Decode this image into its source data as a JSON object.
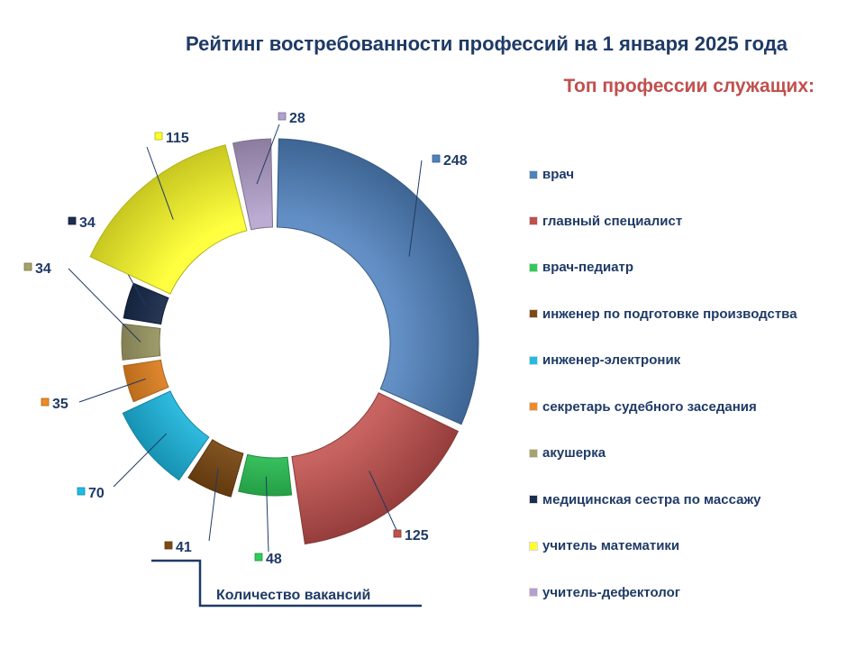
{
  "title": "Рейтинг востребованности профессий на 1 января 2025 года",
  "subtitle": "Топ профессии служащих:",
  "caption": "Количество вакансий",
  "chart_data": {
    "type": "pie",
    "variant": "donut",
    "legend_position": "right",
    "series": [
      {
        "label": "врач",
        "value": 248,
        "color": "#4f81bd"
      },
      {
        "label": "главный специалист",
        "value": 125,
        "color": "#c0504d"
      },
      {
        "label": "врач-педиатр",
        "value": 48,
        "color": "#2ecc5a"
      },
      {
        "label": "инженер по подготовке производства",
        "value": 41,
        "color": "#7f4a12"
      },
      {
        "label": "инженер-электроник",
        "value": 70,
        "color": "#1ebde6"
      },
      {
        "label": "секретарь судебного заседания",
        "value": 35,
        "color": "#f08a24"
      },
      {
        "label": "акушерка",
        "value": 34,
        "color": "#a6a36a"
      },
      {
        "label": "медицинская сестра по массажу",
        "value": 34,
        "color": "#1a2d4f"
      },
      {
        "label": "учитель математики",
        "value": 115,
        "color": "#ffff2a"
      },
      {
        "label": "учитель-дефектолог",
        "value": 28,
        "color": "#b3a0cc"
      }
    ]
  }
}
